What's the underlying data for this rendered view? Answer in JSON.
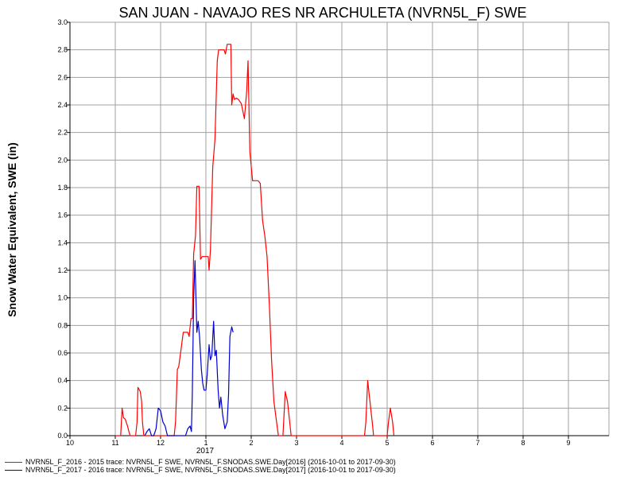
{
  "chart_data": {
    "type": "line",
    "title": "SAN JUAN - NAVAJO RES NR ARCHULETA (NVRN5L_F) SWE",
    "xlabel": "",
    "ylabel": "Snow Water Equivalent, SWE (in)",
    "ylim": [
      0,
      3.0
    ],
    "y_ticks": [
      "0.0",
      "0.2",
      "0.4",
      "0.6",
      "0.8",
      "1.0",
      "1.2",
      "1.4",
      "1.6",
      "1.8",
      "2.0",
      "2.2",
      "2.4",
      "2.6",
      "2.8",
      "3.0"
    ],
    "x_range_months": [
      10,
      20
    ],
    "x_ticks": [
      {
        "m": 10,
        "label": "10"
      },
      {
        "m": 11,
        "label": "11"
      },
      {
        "m": 12,
        "label": "12"
      },
      {
        "m": 13,
        "label": "1"
      },
      {
        "m": 14,
        "label": "2"
      },
      {
        "m": 15,
        "label": "3"
      },
      {
        "m": 16,
        "label": "4"
      },
      {
        "m": 17,
        "label": "5"
      },
      {
        "m": 18,
        "label": "6"
      },
      {
        "m": 19,
        "label": "7"
      },
      {
        "m": 20,
        "label": "8"
      },
      {
        "m": 21,
        "label": "9"
      }
    ],
    "year_label": "2017",
    "grid": true,
    "series": [
      {
        "name": "NVRN5L_F_2016 - 2015 trace: NVRN5L_F SWE, NVRN5L_F.SNODAS.SWE.Day[2016] (2016-10-01 to 2017-09-30)",
        "color": "#ff0000",
        "points": [
          [
            11.0,
            0
          ],
          [
            11.12,
            0
          ],
          [
            11.15,
            0.2
          ],
          [
            11.18,
            0.13
          ],
          [
            11.22,
            0.12
          ],
          [
            11.27,
            0.07
          ],
          [
            11.3,
            0.03
          ],
          [
            11.33,
            0
          ],
          [
            11.45,
            0
          ],
          [
            11.48,
            0.1
          ],
          [
            11.5,
            0.35
          ],
          [
            11.55,
            0.32
          ],
          [
            11.58,
            0.25
          ],
          [
            11.6,
            0.1
          ],
          [
            11.63,
            0
          ],
          [
            12.3,
            0
          ],
          [
            12.33,
            0.1
          ],
          [
            12.37,
            0.48
          ],
          [
            12.4,
            0.5
          ],
          [
            12.45,
            0.62
          ],
          [
            12.5,
            0.75
          ],
          [
            12.55,
            0.75
          ],
          [
            12.6,
            0.75
          ],
          [
            12.63,
            0.72
          ],
          [
            12.67,
            0.85
          ],
          [
            12.7,
            0.85
          ],
          [
            12.73,
            1.32
          ],
          [
            12.77,
            1.45
          ],
          [
            12.8,
            1.81
          ],
          [
            12.85,
            1.81
          ],
          [
            12.88,
            1.28
          ],
          [
            12.92,
            1.3
          ],
          [
            12.97,
            1.3
          ],
          [
            13.05,
            1.3
          ],
          [
            13.07,
            1.2
          ],
          [
            13.1,
            1.35
          ],
          [
            13.15,
            1.95
          ],
          [
            13.2,
            2.15
          ],
          [
            13.25,
            2.72
          ],
          [
            13.28,
            2.8
          ],
          [
            13.33,
            2.8
          ],
          [
            13.4,
            2.8
          ],
          [
            13.43,
            2.77
          ],
          [
            13.47,
            2.84
          ],
          [
            13.55,
            2.84
          ],
          [
            13.57,
            2.4
          ],
          [
            13.6,
            2.48
          ],
          [
            13.63,
            2.44
          ],
          [
            13.67,
            2.45
          ],
          [
            13.72,
            2.44
          ],
          [
            13.78,
            2.41
          ],
          [
            13.82,
            2.35
          ],
          [
            13.85,
            2.3
          ],
          [
            13.9,
            2.5
          ],
          [
            13.93,
            2.72
          ],
          [
            13.97,
            2.06
          ],
          [
            14.03,
            1.85
          ],
          [
            14.15,
            1.85
          ],
          [
            14.2,
            1.83
          ],
          [
            14.25,
            1.56
          ],
          [
            14.3,
            1.45
          ],
          [
            14.35,
            1.3
          ],
          [
            14.4,
            0.95
          ],
          [
            14.45,
            0.55
          ],
          [
            14.5,
            0.25
          ],
          [
            14.55,
            0.12
          ],
          [
            14.6,
            0
          ],
          [
            14.7,
            0
          ],
          [
            14.75,
            0.32
          ],
          [
            14.8,
            0.25
          ],
          [
            14.85,
            0.1
          ],
          [
            14.88,
            0
          ],
          [
            16.5,
            0
          ],
          [
            16.53,
            0.1
          ],
          [
            16.57,
            0.4
          ],
          [
            16.62,
            0.25
          ],
          [
            16.67,
            0.1
          ],
          [
            16.7,
            0
          ],
          [
            17.0,
            0
          ],
          [
            17.03,
            0.1
          ],
          [
            17.07,
            0.2
          ],
          [
            17.12,
            0.1
          ],
          [
            17.15,
            0
          ]
        ]
      },
      {
        "name": "NVRN5L_F_2017 - 2016 trace: NVRN5L_F SWE, NVRN5L_F.SNODAS.SWE.Day[2017] (2016-10-01 to 2017-09-30)",
        "color": "#0000cc",
        "points": [
          [
            11.65,
            0
          ],
          [
            11.7,
            0.03
          ],
          [
            11.75,
            0.05
          ],
          [
            11.8,
            0
          ],
          [
            11.85,
            0
          ],
          [
            11.9,
            0.05
          ],
          [
            11.95,
            0.2
          ],
          [
            12.0,
            0.18
          ],
          [
            12.05,
            0.1
          ],
          [
            12.1,
            0.07
          ],
          [
            12.15,
            0
          ],
          [
            12.55,
            0
          ],
          [
            12.6,
            0.05
          ],
          [
            12.65,
            0.07
          ],
          [
            12.68,
            0.03
          ],
          [
            12.7,
            0.3
          ],
          [
            12.73,
            1.0
          ],
          [
            12.76,
            1.27
          ],
          [
            12.8,
            0.75
          ],
          [
            12.83,
            0.83
          ],
          [
            12.86,
            0.72
          ],
          [
            12.9,
            0.48
          ],
          [
            12.93,
            0.38
          ],
          [
            12.96,
            0.33
          ],
          [
            13.0,
            0.33
          ],
          [
            13.03,
            0.45
          ],
          [
            13.07,
            0.66
          ],
          [
            13.1,
            0.55
          ],
          [
            13.13,
            0.58
          ],
          [
            13.17,
            0.83
          ],
          [
            13.2,
            0.58
          ],
          [
            13.23,
            0.62
          ],
          [
            13.27,
            0.33
          ],
          [
            13.3,
            0.2
          ],
          [
            13.33,
            0.28
          ],
          [
            13.37,
            0.15
          ],
          [
            13.42,
            0.05
          ],
          [
            13.47,
            0.1
          ],
          [
            13.5,
            0.3
          ],
          [
            13.53,
            0.72
          ],
          [
            13.57,
            0.79
          ],
          [
            13.6,
            0.75
          ]
        ]
      }
    ]
  }
}
